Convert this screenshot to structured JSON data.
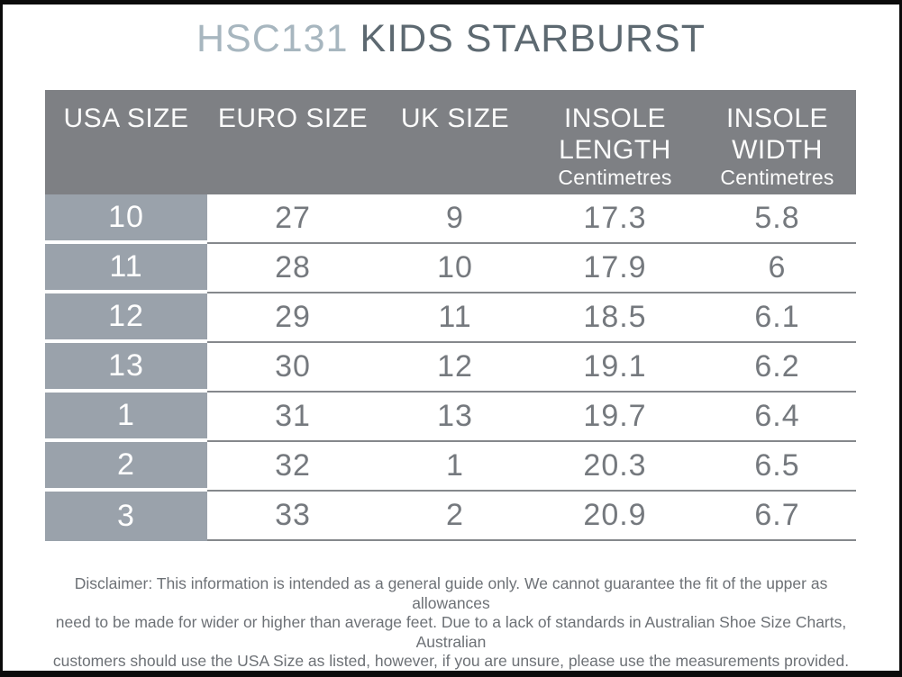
{
  "title": {
    "code": "HSC131",
    "name": "KIDS STARBURST"
  },
  "table": {
    "headers": [
      {
        "line1": "USA SIZE"
      },
      {
        "line1": "EURO SIZE"
      },
      {
        "line1": "UK SIZE"
      },
      {
        "line1": "INSOLE",
        "line2": "LENGTH",
        "sub": "Centimetres"
      },
      {
        "line1": "INSOLE",
        "line2": "WIDTH",
        "sub": "Centimetres"
      }
    ],
    "rows": [
      [
        "10",
        "27",
        "9",
        "17.3",
        "5.8"
      ],
      [
        "11",
        "28",
        "10",
        "17.9",
        "6"
      ],
      [
        "12",
        "29",
        "11",
        "18.5",
        "6.1"
      ],
      [
        "13",
        "30",
        "12",
        "19.1",
        "6.2"
      ],
      [
        "1",
        "31",
        "13",
        "19.7",
        "6.4"
      ],
      [
        "2",
        "32",
        "1",
        "20.3",
        "6.5"
      ],
      [
        "3",
        "33",
        "2",
        "20.9",
        "6.7"
      ]
    ]
  },
  "disclaimer_lines": [
    "Disclaimer: This information is intended as a general guide only. We cannot guarantee the fit of the upper as allowances",
    "need to be made for wider or higher than average feet. Due to a lack of standards in Australian Shoe Size Charts, Australian",
    "customers should use the USA Size as listed, however, if you are unsure, please use the measurements provided."
  ],
  "disclaimer_full": "Disclaimer: This information is intended as a general guide only. We cannot guarantee the fit of the upper as allowances need to be made for wider or higher than average feet. Due to a lack of standards in Australian Shoe Size Charts, Australian customers should use the USA Size as listed, however, if you are unsure, please use the measurements provided.",
  "colors": {
    "header_background": "#7e8084",
    "usa_column_background": "#9aa2ab",
    "row_line": "#85888c",
    "body_text": "#75797e",
    "title_code": "#a7b6bf",
    "title_name": "#5d6971",
    "disclaimer_text": "#6d7176",
    "frame_border": "#0b0b0b"
  }
}
